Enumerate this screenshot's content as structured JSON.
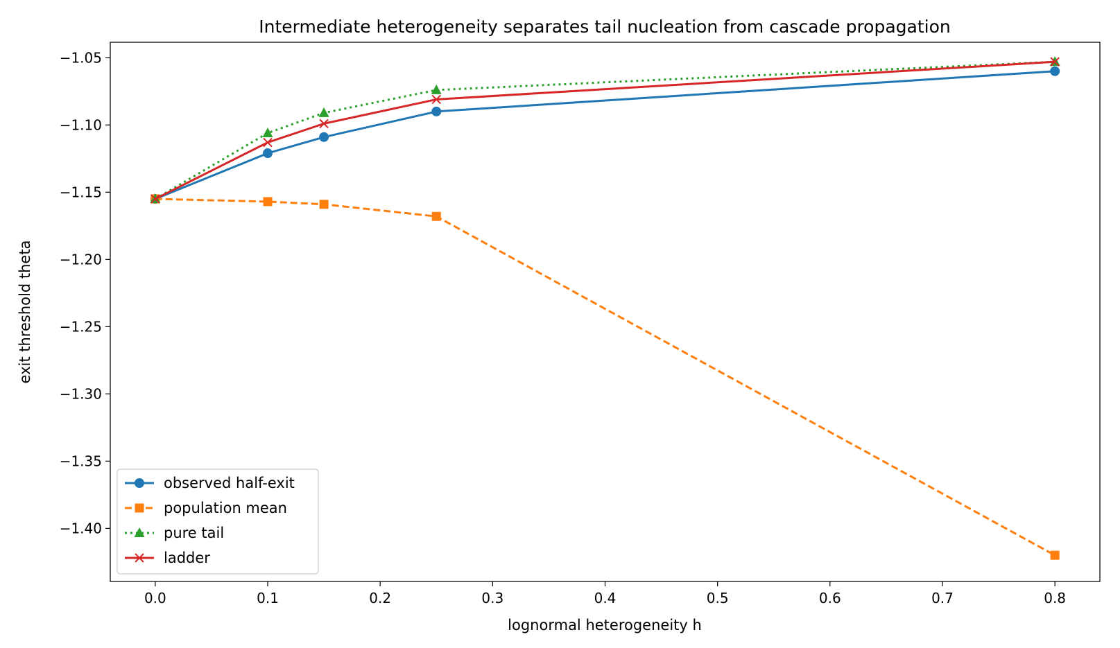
{
  "chart_data": {
    "type": "line",
    "title": "Intermediate heterogeneity separates tail nucleation from cascade propagation",
    "xlabel": "lognormal heterogeneity h",
    "ylabel": "exit threshold theta",
    "x": [
      0.0,
      0.1,
      0.15,
      0.25,
      0.8
    ],
    "xlim": [
      -0.04,
      0.84
    ],
    "ylim": [
      -1.4395,
      -1.0385
    ],
    "xticks": [
      0.0,
      0.1,
      0.2,
      0.3,
      0.4,
      0.5,
      0.6,
      0.7,
      0.8
    ],
    "xtick_labels": [
      "0.0",
      "0.1",
      "0.2",
      "0.3",
      "0.4",
      "0.5",
      "0.6",
      "0.7",
      "0.8"
    ],
    "yticks": [
      -1.05,
      -1.1,
      -1.15,
      -1.2,
      -1.25,
      -1.3,
      -1.35,
      -1.4
    ],
    "ytick_labels": [
      "−1.05",
      "−1.10",
      "−1.15",
      "−1.20",
      "−1.25",
      "−1.30",
      "−1.35",
      "−1.40"
    ],
    "grid": false,
    "legend_position": "lower-left",
    "series": [
      {
        "name": "observed half-exit",
        "values": [
          -1.155,
          -1.121,
          -1.109,
          -1.09,
          -1.06
        ],
        "color": "#1f77b4",
        "dash": "solid",
        "marker": "circle"
      },
      {
        "name": "population mean",
        "values": [
          -1.155,
          -1.157,
          -1.159,
          -1.168,
          -1.42
        ],
        "color": "#ff7f0e",
        "dash": "dashed",
        "marker": "square"
      },
      {
        "name": "pure tail",
        "values": [
          -1.155,
          -1.106,
          -1.091,
          -1.074,
          -1.053
        ],
        "color": "#2ca02c",
        "dash": "dotted",
        "marker": "triangle"
      },
      {
        "name": "ladder",
        "values": [
          -1.155,
          -1.113,
          -1.099,
          -1.081,
          -1.053
        ],
        "color": "#d62728",
        "dash": "solid",
        "marker": "x"
      }
    ]
  }
}
